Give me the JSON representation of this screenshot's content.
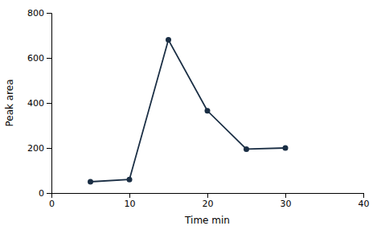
{
  "chart_data": {
    "type": "line",
    "x": [
      5,
      10,
      15,
      20,
      25,
      30
    ],
    "values": [
      50,
      60,
      680,
      365,
      195,
      200
    ],
    "color": "#1a2e44",
    "marker": "circle",
    "xlabel": "Time min",
    "ylabel": "Peak area",
    "xlim": [
      0,
      40
    ],
    "ylim": [
      0,
      800
    ],
    "xticks": [
      0,
      10,
      20,
      30,
      40
    ],
    "yticks": [
      0,
      200,
      400,
      600,
      800
    ]
  }
}
